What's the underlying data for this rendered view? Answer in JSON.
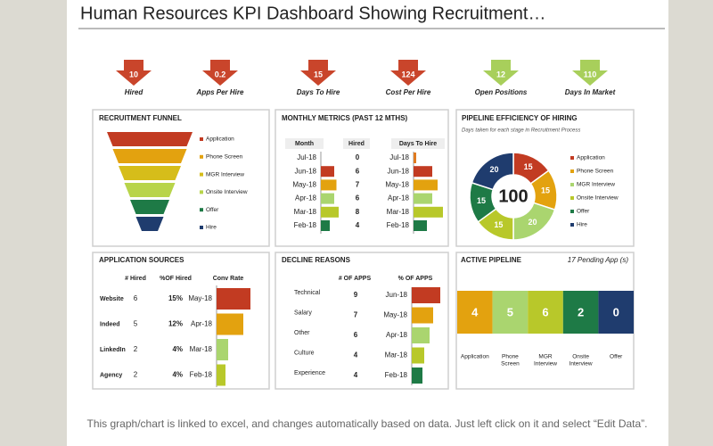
{
  "title": "Human Resources KPI Dashboard Showing Recruitment…",
  "footer": "This graph/chart is linked to excel, and changes automatically based on data. Just left click on it and select “Edit Data”.",
  "kpis": [
    {
      "value": 10,
      "label": "Hired",
      "color": "#c9452b"
    },
    {
      "value": 0.2,
      "label": "Apps Per Hire",
      "color": "#c9452b"
    },
    {
      "value": 15,
      "label": "Days To Hire",
      "color": "#c9452b"
    },
    {
      "value": 124,
      "label": "Cost Per Hire",
      "color": "#c9452b"
    },
    {
      "value": 12,
      "label": "Open Positions",
      "color": "#a8cf5b"
    },
    {
      "value": 110,
      "label": "Days In Market",
      "color": "#a8cf5b"
    }
  ],
  "funnel": {
    "title": "RECRUITMENT  FUNNEL",
    "stages": [
      {
        "label": "Application",
        "color": "#c23b22"
      },
      {
        "label": "Phone Screen",
        "color": "#e3a20f"
      },
      {
        "label": "MGR Interview",
        "color": "#d6bd1a"
      },
      {
        "label": "Onsite Interview",
        "color": "#b8d44a"
      },
      {
        "label": "Offer",
        "color": "#1e7a46"
      },
      {
        "label": "Hire",
        "color": "#1f3c6e"
      }
    ]
  },
  "monthly": {
    "title": "MONTHLY METRICS (PAST 12 MTHS)",
    "headers": [
      "Month",
      "Hired",
      "Days To Hire"
    ],
    "months": [
      "Jul-18",
      "Jun-18",
      "May-18",
      "Apr-18",
      "Mar-18",
      "Feb-18"
    ],
    "hired": [
      0,
      6,
      7,
      6,
      8,
      4
    ],
    "days_to_hire": [
      2,
      14,
      18,
      14,
      22,
      10
    ],
    "colors": [
      "#e07b20",
      "#c23b22",
      "#e3a20f",
      "#aad56f",
      "#b8c82a",
      "#1e7a46"
    ]
  },
  "pipeline_efficiency": {
    "title": "PIPELINE EFFICIENCY  OF HIRING",
    "subtitle": "Days taken for each stage in Recruitment Process",
    "total": 100,
    "stages": [
      {
        "label": "Application",
        "value": 15,
        "color": "#c23b22"
      },
      {
        "label": "Phone Screen",
        "value": 15,
        "color": "#e3a20f"
      },
      {
        "label": "MGR Interview",
        "value": 20,
        "color": "#aad56f"
      },
      {
        "label": "Onsite Interview",
        "value": 15,
        "color": "#b8c82a"
      },
      {
        "label": "Offer",
        "value": 15,
        "color": "#1e7a46"
      },
      {
        "label": "Hire",
        "value": 20,
        "color": "#1f3c6e"
      }
    ]
  },
  "sources": {
    "title": "APPLICATION  SOURCES",
    "headers": [
      "# Hired",
      "%OF Hired",
      "Conv Rate"
    ],
    "rows": [
      {
        "source": "Website",
        "hired": 6,
        "percent": "15%",
        "month": "May-18",
        "rate": 38,
        "color": "#c23b22"
      },
      {
        "source": "Indeed",
        "hired": 5,
        "percent": "12%",
        "month": "Apr-18",
        "rate": 30,
        "color": "#e3a20f"
      },
      {
        "source": "LinkedIn",
        "hired": 2,
        "percent": "4%",
        "month": "Mar-18",
        "rate": 13,
        "color": "#aad56f"
      },
      {
        "source": "Agency",
        "hired": 2,
        "percent": "4%",
        "month": "Feb-18",
        "rate": 10,
        "color": "#b8c82a"
      }
    ]
  },
  "decline": {
    "title": "DECLINE  REASONS",
    "headers": [
      "# OF APPS",
      "% OF APPS"
    ],
    "rows": [
      {
        "reason": "Technical",
        "apps": 9,
        "month": "Jun-18",
        "share": 32,
        "color": "#c23b22"
      },
      {
        "reason": "Salary",
        "apps": 7,
        "month": "May-18",
        "share": 24,
        "color": "#e3a20f"
      },
      {
        "reason": "Other",
        "apps": 6,
        "month": "Apr-18",
        "share": 20,
        "color": "#aad56f"
      },
      {
        "reason": "Culture",
        "apps": 4,
        "month": "Mar-18",
        "share": 14,
        "color": "#b8c82a"
      },
      {
        "reason": "Experience",
        "apps": 4,
        "month": "Feb-18",
        "share": 12,
        "color": "#1e7a46"
      }
    ]
  },
  "active": {
    "title": "ACTIVE PIPELINE",
    "pending": "17 Pending App (s)",
    "stages": [
      {
        "label": "Application",
        "value": 4,
        "color": "#e3a20f"
      },
      {
        "label": "Phone Screen",
        "value": 5,
        "color": "#aad56f"
      },
      {
        "label": "MGR Interview",
        "value": 6,
        "color": "#b8c82a"
      },
      {
        "label": "Onsite Interview",
        "value": 2,
        "color": "#1e7a46"
      },
      {
        "label": "Offer",
        "value": 0,
        "color": "#1f3c6e"
      }
    ]
  }
}
